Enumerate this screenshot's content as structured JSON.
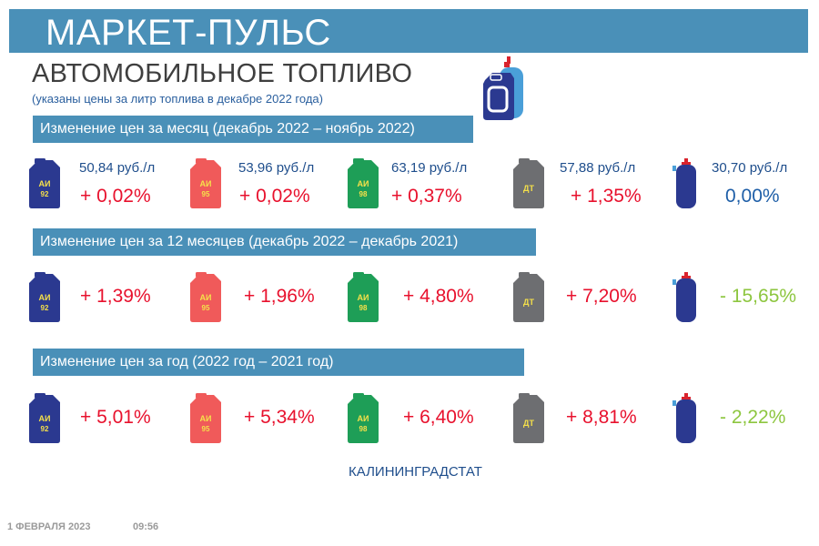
{
  "header": {
    "title": "МАРКЕТ-ПУЛЬС",
    "subtitle": "АВТОМОБИЛЬНОЕ ТОПЛИВО",
    "note": "(указаны цены за литр топлива в декабре 2022 года)"
  },
  "fuels": [
    {
      "label_top": "АИ",
      "label_bottom": "92",
      "color": "#2b3990",
      "text_color": "#f5e04a"
    },
    {
      "label_top": "АИ",
      "label_bottom": "95",
      "color": "#f05a5a",
      "text_color": "#f5e04a"
    },
    {
      "label_top": "АИ",
      "label_bottom": "98",
      "color": "#1e9e57",
      "text_color": "#f5e04a"
    },
    {
      "label_top": "ДТ",
      "label_bottom": "",
      "color": "#6d6e71",
      "text_color": "#f5e04a"
    },
    {
      "label_top": "",
      "label_bottom": "",
      "color": "#2b3990",
      "text_color": "#ffffff"
    }
  ],
  "sections": [
    {
      "title": "Изменение цен за месяц (декабрь 2022 – ноябрь 2022)",
      "prices": [
        "50,84 руб./л",
        "53,96 руб./л",
        "63,19 руб./л",
        "57,88 руб./л",
        "30,70 руб./л"
      ],
      "changes": [
        "+ 0,02%",
        "+ 0,02%",
        "+ 0,37%",
        "+ 1,35%",
        "0,00%"
      ],
      "change_colors": [
        "#e8112d",
        "#e8112d",
        "#e8112d",
        "#e8112d",
        "#1f5fa8"
      ]
    },
    {
      "title": "Изменение цен за 12 месяцев (декабрь 2022 – декабрь 2021)",
      "changes": [
        "+ 1,39%",
        "+ 1,96%",
        "+ 4,80%",
        "+ 7,20%",
        "- 15,65%"
      ],
      "change_colors": [
        "#e8112d",
        "#e8112d",
        "#e8112d",
        "#e8112d",
        "#8dc63f"
      ]
    },
    {
      "title": "Изменение цен за год (2022 год – 2021 год)",
      "changes": [
        "+ 5,01%",
        "+ 5,34%",
        "+ 6,40%",
        "+ 8,81%",
        "- 2,22%"
      ],
      "change_colors": [
        "#e8112d",
        "#e8112d",
        "#e8112d",
        "#e8112d",
        "#8dc63f"
      ]
    }
  ],
  "source": "КАЛИНИНГРАДСТАТ",
  "footer": {
    "date": "1 ФЕВРАЛЯ 2023",
    "time": "09:56"
  }
}
